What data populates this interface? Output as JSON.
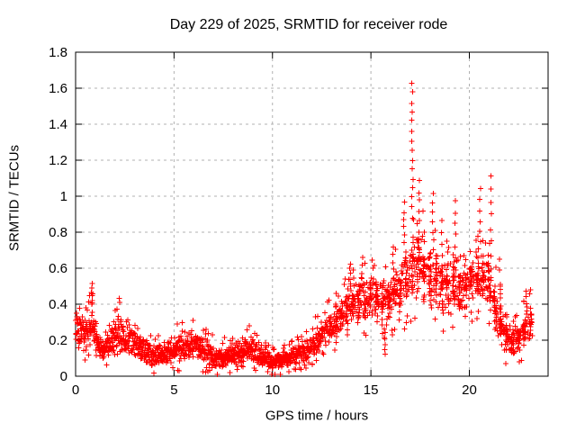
{
  "chart_data": {
    "type": "scatter",
    "title": "Day 229 of 2025, SRMTID for receiver rode",
    "xlabel": "GPS time / hours",
    "ylabel": "SRMTID / TECUs",
    "xlim": [
      0,
      24
    ],
    "ylim": [
      0,
      1.8
    ],
    "xticks": [
      {
        "v": 0,
        "label": "0"
      },
      {
        "v": 5,
        "label": "5"
      },
      {
        "v": 10,
        "label": "10"
      },
      {
        "v": 15,
        "label": "15"
      },
      {
        "v": 20,
        "label": "20"
      }
    ],
    "yticks": [
      {
        "v": 0,
        "label": "0"
      },
      {
        "v": 0.2,
        "label": "0.2"
      },
      {
        "v": 0.4,
        "label": "0.4"
      },
      {
        "v": 0.6,
        "label": "0.6"
      },
      {
        "v": 0.8,
        "label": "0.8"
      },
      {
        "v": 1,
        "label": "1"
      },
      {
        "v": 1.2,
        "label": "1.2"
      },
      {
        "v": 1.4,
        "label": "1.4"
      },
      {
        "v": 1.6,
        "label": "1.6"
      },
      {
        "v": 1.8,
        "label": "1.8"
      }
    ],
    "grid": true,
    "legend": "none",
    "marker": "plus",
    "colors": {
      "points": "#ff0000",
      "grid": "#b0b0b0",
      "axis": "#000000",
      "text": "#000000"
    },
    "peak_point": {
      "t": 17.1,
      "value": 1.63
    },
    "time_range_hours": [
      0,
      23.2
    ],
    "band_envelope": [
      [
        0.0,
        0.08,
        0.43
      ],
      [
        0.3,
        0.1,
        0.4
      ],
      [
        0.6,
        0.12,
        0.34
      ],
      [
        0.85,
        0.15,
        0.45
      ],
      [
        1.1,
        0.08,
        0.28
      ],
      [
        1.5,
        0.07,
        0.22
      ],
      [
        1.9,
        0.1,
        0.3
      ],
      [
        2.15,
        0.13,
        0.38
      ],
      [
        2.5,
        0.1,
        0.28
      ],
      [
        3.0,
        0.08,
        0.27
      ],
      [
        3.5,
        0.06,
        0.22
      ],
      [
        4.0,
        0.05,
        0.18
      ],
      [
        4.6,
        0.06,
        0.2
      ],
      [
        5.2,
        0.07,
        0.25
      ],
      [
        5.9,
        0.08,
        0.27
      ],
      [
        6.3,
        0.07,
        0.26
      ],
      [
        6.8,
        0.05,
        0.2
      ],
      [
        7.3,
        0.02,
        0.16
      ],
      [
        7.8,
        0.05,
        0.19
      ],
      [
        8.3,
        0.06,
        0.21
      ],
      [
        8.9,
        0.07,
        0.24
      ],
      [
        9.4,
        0.05,
        0.17
      ],
      [
        9.9,
        0.03,
        0.14
      ],
      [
        10.4,
        0.03,
        0.13
      ],
      [
        10.9,
        0.05,
        0.16
      ],
      [
        11.4,
        0.06,
        0.19
      ],
      [
        11.9,
        0.08,
        0.24
      ],
      [
        12.4,
        0.12,
        0.31
      ],
      [
        12.9,
        0.17,
        0.38
      ],
      [
        13.4,
        0.22,
        0.45
      ],
      [
        13.9,
        0.26,
        0.5
      ],
      [
        14.4,
        0.28,
        0.54
      ],
      [
        14.9,
        0.3,
        0.57
      ],
      [
        15.4,
        0.29,
        0.54
      ],
      [
        15.9,
        0.28,
        0.55
      ],
      [
        16.4,
        0.32,
        0.65
      ],
      [
        16.9,
        0.38,
        0.8
      ],
      [
        17.3,
        0.42,
        0.9
      ],
      [
        17.7,
        0.38,
        0.82
      ],
      [
        18.1,
        0.35,
        0.78
      ],
      [
        18.6,
        0.32,
        0.7
      ],
      [
        19.1,
        0.33,
        0.68
      ],
      [
        19.6,
        0.33,
        0.62
      ],
      [
        20.1,
        0.36,
        0.66
      ],
      [
        20.6,
        0.38,
        0.7
      ],
      [
        21.0,
        0.36,
        0.66
      ],
      [
        21.4,
        0.2,
        0.5
      ],
      [
        21.8,
        0.12,
        0.33
      ],
      [
        22.2,
        0.09,
        0.28
      ],
      [
        22.6,
        0.13,
        0.33
      ],
      [
        23.0,
        0.17,
        0.4
      ],
      [
        23.2,
        0.2,
        0.46
      ]
    ],
    "spikes": [
      {
        "t": 0.85,
        "vmin": 0.42,
        "vmax": 0.51,
        "n": 5
      },
      {
        "t": 13.95,
        "vmin": 0.48,
        "vmax": 0.63,
        "n": 6
      },
      {
        "t": 14.55,
        "vmin": 0.5,
        "vmax": 0.66,
        "n": 5
      },
      {
        "t": 15.1,
        "vmin": 0.5,
        "vmax": 0.64,
        "n": 4
      },
      {
        "t": 15.7,
        "vmin": 0.13,
        "vmax": 0.27,
        "n": 7
      },
      {
        "t": 16.15,
        "vmin": 0.55,
        "vmax": 0.72,
        "n": 5
      },
      {
        "t": 16.7,
        "vmin": 0.75,
        "vmax": 0.96,
        "n": 6
      },
      {
        "t": 17.1,
        "vmin": 0.88,
        "vmax": 1.63,
        "n": 15
      },
      {
        "t": 17.45,
        "vmin": 0.7,
        "vmax": 1.08,
        "n": 8
      },
      {
        "t": 18.15,
        "vmin": 0.7,
        "vmax": 1.02,
        "n": 7
      },
      {
        "t": 18.6,
        "vmin": 0.6,
        "vmax": 0.86,
        "n": 5
      },
      {
        "t": 19.3,
        "vmin": 0.6,
        "vmax": 0.97,
        "n": 7
      },
      {
        "t": 20.55,
        "vmin": 0.75,
        "vmax": 1.04,
        "n": 6
      },
      {
        "t": 21.1,
        "vmin": 0.45,
        "vmax": 1.12,
        "n": 10
      },
      {
        "t": 21.55,
        "vmin": 0.45,
        "vmax": 0.65,
        "n": 4
      },
      {
        "t": 22.9,
        "vmin": 0.35,
        "vmax": 0.48,
        "n": 4
      }
    ],
    "n_points": 2300,
    "seed": 229
  }
}
